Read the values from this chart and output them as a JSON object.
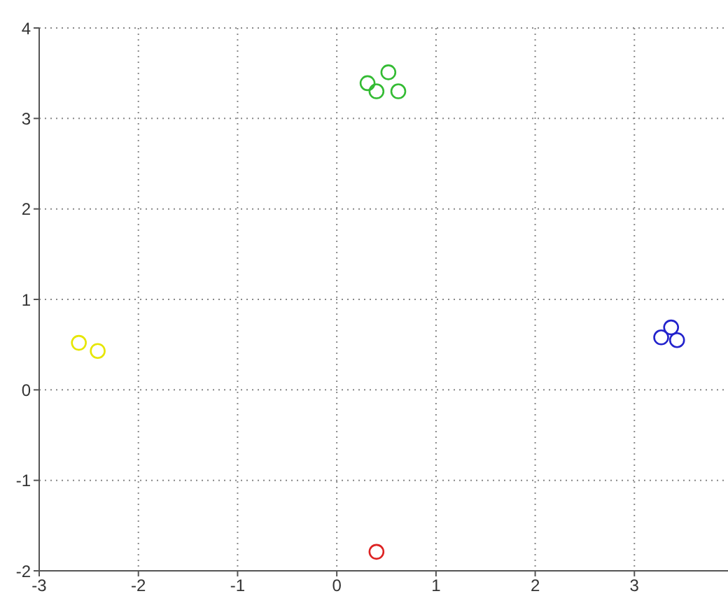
{
  "chart_data": {
    "type": "scatter",
    "xlim": [
      -3,
      4
    ],
    "ylim": [
      -2,
      4
    ],
    "xticks": [
      -3,
      -2,
      -1,
      0,
      1,
      2,
      3
    ],
    "yticks": [
      -2,
      -1,
      0,
      1,
      2,
      3,
      4
    ],
    "grid": true,
    "marker": "circle",
    "legend": false,
    "series": [
      {
        "color": "#e6e600",
        "x": [
          -2.6,
          -2.41
        ],
        "values": [
          0.52,
          0.43
        ]
      },
      {
        "color": "#33bb33",
        "x": [
          0.31,
          0.4,
          0.52,
          0.62
        ],
        "values": [
          3.39,
          3.3,
          3.51,
          3.3
        ]
      },
      {
        "color": "#2222cc",
        "x": [
          3.27,
          3.37,
          3.43
        ],
        "values": [
          0.58,
          0.69,
          0.55
        ]
      },
      {
        "color": "#dd2222",
        "x": [
          0.4
        ],
        "values": [
          -1.79
        ]
      }
    ]
  }
}
